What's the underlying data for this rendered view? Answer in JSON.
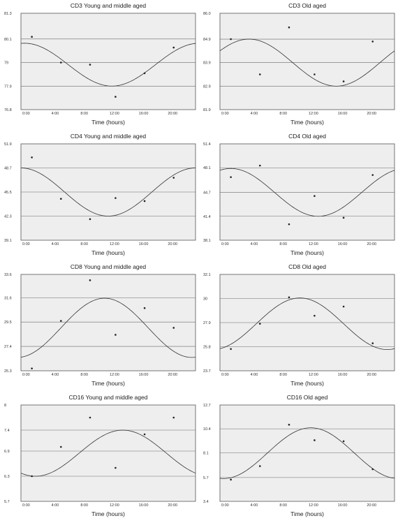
{
  "chart_data": [
    {
      "type": "scatter",
      "title": "CD3 Young and middle aged",
      "xlabel": "Time (hours)",
      "ylabel": "",
      "x_ticks": [
        "0:00",
        "4:00",
        "8:00",
        "12:00",
        "16:00",
        "20:00"
      ],
      "xlim": [
        0,
        24
      ],
      "y_ticks": [
        "76.8",
        "77.9",
        "79",
        "80.1",
        "81.3"
      ],
      "ylim": [
        76.8,
        81.3
      ],
      "gridlines": [
        77.9,
        79,
        80.1
      ],
      "points": {
        "x": [
          1.5,
          5.5,
          9.5,
          13.0,
          17.0,
          21.0
        ],
        "y": [
          80.2,
          79.0,
          78.9,
          77.4,
          78.5,
          79.7
        ]
      },
      "fit": {
        "mesor": 78.9,
        "amplitude": 1.0,
        "acrophase": 0.5
      }
    },
    {
      "type": "scatter",
      "title": "CD3 Old aged",
      "xlabel": "Time (hours)",
      "ylabel": "",
      "x_ticks": [
        "0:00",
        "4:00",
        "8:00",
        "12:00",
        "16:00",
        "20:00"
      ],
      "xlim": [
        0,
        24
      ],
      "y_ticks": [
        "81.9",
        "82.9",
        "83.9",
        "84.9",
        "86.0"
      ],
      "ylim": [
        81.9,
        86.0
      ],
      "gridlines": [
        82.9,
        83.9,
        84.9
      ],
      "points": {
        "x": [
          1.5,
          5.5,
          9.5,
          13.0,
          17.0,
          21.0
        ],
        "y": [
          84.9,
          83.4,
          85.4,
          83.4,
          83.1,
          84.8
        ]
      },
      "fit": {
        "mesor": 83.9,
        "amplitude": 1.0,
        "acrophase": 4.0
      }
    },
    {
      "type": "scatter",
      "title": "CD4 Young and middle aged",
      "xlabel": "Time (hours)",
      "ylabel": "",
      "x_ticks": [
        "0:00",
        "4:00",
        "8:00",
        "12:00",
        "16:00",
        "20:00"
      ],
      "xlim": [
        0,
        24
      ],
      "y_ticks": [
        "39.1",
        "42.3",
        "45.5",
        "48.7",
        "51.9"
      ],
      "ylim": [
        39.1,
        51.9
      ],
      "gridlines": [
        42.3,
        45.5,
        48.7
      ],
      "points": {
        "x": [
          1.5,
          5.5,
          9.5,
          13.0,
          17.0,
          21.0
        ],
        "y": [
          50.1,
          44.6,
          41.9,
          44.7,
          44.3,
          47.4
        ]
      },
      "fit": {
        "mesor": 45.5,
        "amplitude": 3.2,
        "acrophase": 0.0
      }
    },
    {
      "type": "scatter",
      "title": "CD4 Old aged",
      "xlabel": "Time (hours)",
      "ylabel": "",
      "x_ticks": [
        "0:00",
        "4:00",
        "8:00",
        "12:00",
        "16:00",
        "20:00"
      ],
      "xlim": [
        0,
        24
      ],
      "y_ticks": [
        "38.1",
        "41.4",
        "44.7",
        "48.1",
        "51.4"
      ],
      "ylim": [
        38.1,
        51.4
      ],
      "gridlines": [
        41.4,
        44.7,
        48.1
      ],
      "points": {
        "x": [
          1.5,
          5.5,
          9.5,
          13.0,
          17.0,
          21.0
        ],
        "y": [
          46.8,
          48.4,
          40.3,
          44.2,
          41.2,
          47.1
        ]
      },
      "fit": {
        "mesor": 44.7,
        "amplitude": 3.3,
        "acrophase": 1.5
      }
    },
    {
      "type": "scatter",
      "title": "CD8 Young and middle aged",
      "xlabel": "Time (hours)",
      "ylabel": "",
      "x_ticks": [
        "0:00",
        "4:00",
        "8:00",
        "12:00",
        "16:00",
        "20:00"
      ],
      "xlim": [
        0,
        24
      ],
      "y_ticks": [
        "25.3",
        "27.4",
        "29.5",
        "31.6",
        "33.6"
      ],
      "ylim": [
        25.3,
        33.6
      ],
      "gridlines": [
        27.4,
        29.5,
        31.6
      ],
      "points": {
        "x": [
          1.5,
          5.5,
          9.5,
          13.0,
          17.0,
          21.0
        ],
        "y": [
          25.5,
          29.6,
          33.1,
          28.4,
          30.7,
          29.0
        ]
      },
      "fit": {
        "mesor": 29.0,
        "amplitude": 2.55,
        "acrophase": 11.5
      }
    },
    {
      "type": "scatter",
      "title": "CD8 Old aged",
      "xlabel": "Time (hours)",
      "ylabel": "",
      "x_ticks": [
        "0:00",
        "4:00",
        "8:00",
        "12:00",
        "16:00",
        "20:00"
      ],
      "xlim": [
        0,
        24
      ],
      "y_ticks": [
        "23.7",
        "25.8",
        "27.9",
        "30",
        "32.1"
      ],
      "ylim": [
        23.7,
        32.1
      ],
      "gridlines": [
        25.8,
        27.9,
        30
      ],
      "points": {
        "x": [
          1.5,
          5.5,
          9.5,
          13.0,
          17.0,
          21.0
        ],
        "y": [
          25.6,
          27.8,
          30.1,
          28.5,
          29.3,
          26.1
        ]
      },
      "fit": {
        "mesor": 27.8,
        "amplitude": 2.25,
        "acrophase": 11.0
      }
    },
    {
      "type": "scatter",
      "title": "CD16 Young and middle aged",
      "xlabel": "Time (hours)",
      "ylabel": "",
      "x_ticks": [
        "0:00",
        "4:00",
        "8:00",
        "12:00",
        "16:00",
        "20:00"
      ],
      "xlim": [
        0,
        24
      ],
      "y_ticks": [
        "5.7",
        "6.3",
        "6.9",
        "7.4",
        "8"
      ],
      "ylim": [
        5.7,
        8
      ],
      "gridlines": [
        6.3,
        6.9,
        7.4
      ],
      "points": {
        "x": [
          1.5,
          5.5,
          9.5,
          13.0,
          17.0,
          21.0
        ],
        "y": [
          6.3,
          7.0,
          7.7,
          6.5,
          7.3,
          7.7
        ]
      },
      "fit": {
        "mesor": 6.85,
        "amplitude": 0.55,
        "acrophase": 14.0
      }
    },
    {
      "type": "scatter",
      "title": "CD16 Old aged",
      "xlabel": "Time (hours)",
      "ylabel": "",
      "x_ticks": [
        "0:00",
        "4:00",
        "8:00",
        "12:00",
        "16:00",
        "20:00"
      ],
      "xlim": [
        0,
        24
      ],
      "y_ticks": [
        "3.4",
        "5.7",
        "8.1",
        "10.4",
        "12.7"
      ],
      "ylim": [
        3.4,
        12.7
      ],
      "gridlines": [
        5.7,
        8.1,
        10.4
      ],
      "points": {
        "x": [
          1.5,
          5.5,
          9.5,
          13.0,
          17.0,
          21.0
        ],
        "y": [
          5.5,
          6.8,
          10.8,
          9.3,
          9.2,
          6.5
        ]
      },
      "fit": {
        "mesor": 8.05,
        "amplitude": 2.45,
        "acrophase": 12.5
      }
    }
  ]
}
